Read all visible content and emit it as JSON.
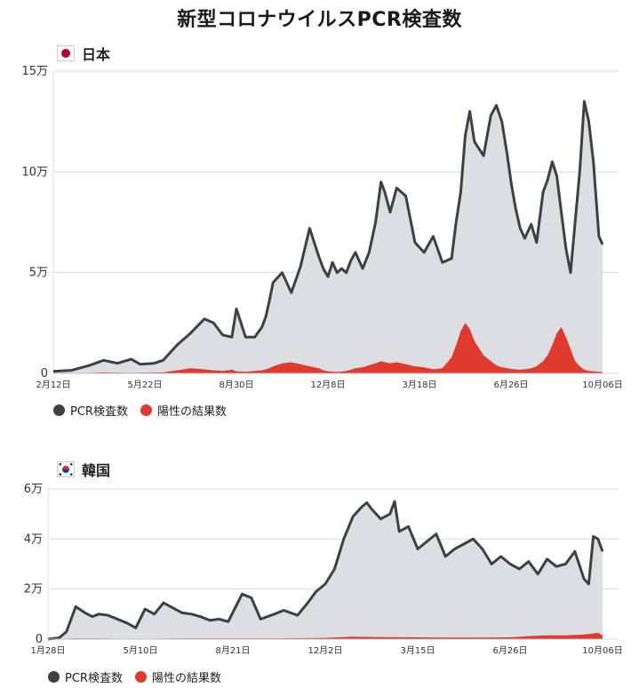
{
  "title": "新型コロナウイルスPCR検査数",
  "colors": {
    "tests_line": "#3d4045",
    "tests_fill": "#dcdee2",
    "positive_fill": "#e03a2f",
    "grid": "#d9d9d9"
  },
  "chart_data": [
    {
      "type": "area",
      "country": "日本",
      "flag_icon": "japan-flag-icon",
      "y_ticks": [
        "0",
        "5万",
        "10万",
        "15万"
      ],
      "y_tick_values": [
        0,
        50000,
        100000,
        150000
      ],
      "ylim": [
        0,
        150000
      ],
      "x_ticks": [
        "2月12日",
        "5月22日",
        "8月30日",
        "12月8日",
        "3月18日",
        "6月26日",
        "10月06日"
      ],
      "xlim": [
        0,
        600
      ],
      "x_tick_values": [
        0,
        100,
        200,
        300,
        400,
        500,
        600
      ],
      "legend": [
        "PCR検査数",
        "陽性の結果数"
      ],
      "series": [
        {
          "name": "PCR検査数",
          "x": [
            0,
            20,
            40,
            55,
            70,
            85,
            95,
            110,
            120,
            135,
            150,
            165,
            175,
            185,
            195,
            200,
            210,
            220,
            228,
            232,
            236,
            240,
            250,
            260,
            270,
            280,
            290,
            295,
            300,
            305,
            310,
            315,
            320,
            325,
            330,
            338,
            345,
            352,
            358,
            362,
            368,
            375,
            385,
            395,
            405,
            415,
            425,
            435,
            440,
            445,
            450,
            455,
            460,
            470,
            478,
            484,
            490,
            496,
            500,
            505,
            510,
            515,
            522,
            528,
            535,
            540,
            545,
            550,
            555,
            560,
            565,
            570,
            575,
            580,
            585,
            590,
            596,
            600
          ],
          "values": [
            1000,
            1500,
            4000,
            6500,
            5000,
            7000,
            4500,
            5000,
            6500,
            14000,
            20000,
            27000,
            25000,
            19000,
            18000,
            32000,
            18000,
            18000,
            23000,
            28000,
            36000,
            45000,
            50000,
            40000,
            53000,
            72000,
            58000,
            52000,
            48000,
            55000,
            50000,
            52000,
            50000,
            56000,
            60000,
            52000,
            60000,
            75000,
            95000,
            90000,
            80000,
            92000,
            88000,
            65000,
            60000,
            68000,
            55000,
            57000,
            75000,
            90000,
            118000,
            130000,
            115000,
            108000,
            128000,
            133000,
            125000,
            108000,
            95000,
            82000,
            72000,
            67000,
            74000,
            65000,
            90000,
            96000,
            105000,
            98000,
            80000,
            62000,
            50000,
            75000,
            100000,
            135000,
            125000,
            105000,
            68000,
            64000
          ]
        },
        {
          "name": "陽性の結果数",
          "x": [
            0,
            20,
            40,
            55,
            70,
            85,
            95,
            110,
            120,
            135,
            150,
            165,
            175,
            185,
            195,
            200,
            210,
            220,
            228,
            232,
            236,
            240,
            250,
            260,
            270,
            280,
            290,
            295,
            300,
            305,
            310,
            315,
            320,
            325,
            330,
            338,
            345,
            352,
            358,
            362,
            368,
            375,
            385,
            395,
            405,
            415,
            425,
            435,
            440,
            445,
            450,
            455,
            460,
            470,
            478,
            484,
            490,
            496,
            500,
            505,
            510,
            515,
            522,
            528,
            535,
            540,
            545,
            550,
            555,
            560,
            565,
            570,
            575,
            580,
            585,
            590,
            596,
            600
          ],
          "values": [
            0,
            0,
            200,
            500,
            300,
            200,
            300,
            400,
            500,
            1500,
            2500,
            2000,
            1500,
            1200,
            1800,
            1000,
            800,
            1200,
            1500,
            2000,
            2500,
            3500,
            5000,
            5500,
            4500,
            3500,
            2500,
            1500,
            1000,
            800,
            700,
            900,
            1200,
            1800,
            2500,
            3000,
            4000,
            5000,
            6000,
            5500,
            5000,
            5500,
            4500,
            3500,
            3000,
            2000,
            2500,
            8000,
            14000,
            21000,
            25000,
            22000,
            16000,
            9000,
            6000,
            4000,
            3000,
            2500,
            2200,
            2000,
            1800,
            2000,
            2500,
            3500,
            6000,
            9000,
            14000,
            20000,
            23000,
            18000,
            12000,
            6000,
            3500,
            1800,
            1200,
            1000,
            800,
            600
          ]
        }
      ]
    },
    {
      "type": "area",
      "country": "韓国",
      "flag_icon": "korea-flag-icon",
      "y_ticks": [
        "0",
        "2万",
        "4万",
        "6万"
      ],
      "y_tick_values": [
        0,
        20000,
        40000,
        60000
      ],
      "ylim": [
        0,
        60000
      ],
      "x_ticks": [
        "1月28日",
        "5月10日",
        "8月21日",
        "12月2日",
        "3月15日",
        "6月26日",
        "10月06日"
      ],
      "xlim": [
        0,
        600
      ],
      "x_tick_values": [
        0,
        100,
        200,
        300,
        400,
        500,
        600
      ],
      "legend": [
        "PCR検査数",
        "陽性の結果数"
      ],
      "series": [
        {
          "name": "PCR検査数",
          "x": [
            0,
            12,
            20,
            30,
            40,
            48,
            55,
            65,
            75,
            85,
            95,
            105,
            115,
            125,
            135,
            145,
            155,
            165,
            175,
            185,
            195,
            210,
            220,
            230,
            245,
            255,
            270,
            280,
            290,
            300,
            310,
            320,
            330,
            340,
            345,
            350,
            360,
            370,
            375,
            380,
            390,
            400,
            410,
            420,
            430,
            440,
            450,
            460,
            470,
            480,
            490,
            500,
            510,
            520,
            530,
            540,
            550,
            560,
            570,
            580,
            585,
            590,
            595,
            600
          ],
          "values": [
            0,
            500,
            3000,
            13000,
            10500,
            9000,
            10000,
            9500,
            8000,
            6500,
            4500,
            12000,
            10000,
            14500,
            12500,
            10500,
            10000,
            9000,
            7500,
            8000,
            7000,
            18000,
            16500,
            8000,
            10000,
            11500,
            9500,
            14000,
            19000,
            22000,
            28000,
            40000,
            49000,
            53000,
            54500,
            52000,
            48000,
            50000,
            55000,
            43000,
            45000,
            36000,
            39000,
            42000,
            33000,
            36000,
            38000,
            40000,
            36000,
            30000,
            33000,
            30000,
            28000,
            31000,
            26000,
            32000,
            29000,
            30000,
            35000,
            24000,
            22000,
            41000,
            40000,
            35000
          ]
        },
        {
          "name": "陽性の結果数",
          "x": [
            0,
            30,
            60,
            100,
            150,
            200,
            250,
            300,
            330,
            360,
            400,
            450,
            500,
            520,
            540,
            560,
            580,
            595,
            600
          ],
          "values": [
            0,
            300,
            200,
            150,
            250,
            250,
            300,
            500,
            1000,
            800,
            700,
            600,
            700,
            1200,
            1500,
            1500,
            1800,
            2500,
            1500
          ]
        }
      ]
    }
  ]
}
